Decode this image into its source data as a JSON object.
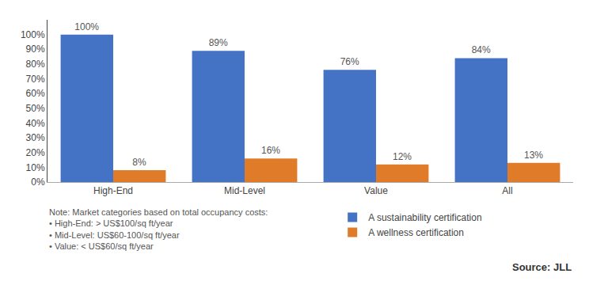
{
  "chart_data": {
    "type": "bar",
    "categories": [
      "High-End",
      "Mid-Level",
      "Value",
      "All"
    ],
    "series": [
      {
        "name": "A sustainability certification",
        "color": "#4472C4",
        "values": [
          100,
          89,
          76,
          84
        ],
        "value_labels": [
          "100%",
          "89%",
          "76%",
          "84%"
        ]
      },
      {
        "name": "A wellness certification",
        "color": "#E07B29",
        "values": [
          8,
          16,
          12,
          13
        ],
        "value_labels": [
          "8%",
          "16%",
          "12%",
          "13%"
        ]
      }
    ],
    "ylim": [
      0,
      110
    ],
    "yticks": [
      {
        "value": 0,
        "label": "0%"
      },
      {
        "value": 10,
        "label": "10%"
      },
      {
        "value": 20,
        "label": "20%"
      },
      {
        "value": 30,
        "label": "30%"
      },
      {
        "value": 40,
        "label": "40%"
      },
      {
        "value": 50,
        "label": "50%"
      },
      {
        "value": 60,
        "label": "60%"
      },
      {
        "value": 70,
        "label": "70%"
      },
      {
        "value": 80,
        "label": "80%"
      },
      {
        "value": 90,
        "label": "90%"
      },
      {
        "value": 100,
        "label": "100%"
      }
    ],
    "grid": false,
    "data_labels": true,
    "legend": "bottom",
    "annotations": [
      "Note: Market categories based on total occupancy costs:",
      "• High-End: > US$100/sq ft/year",
      "• Mid-Level: US$60-100/sq ft/year",
      "• Value: < US$60/sq ft/year",
      "Source: JLL"
    ]
  }
}
